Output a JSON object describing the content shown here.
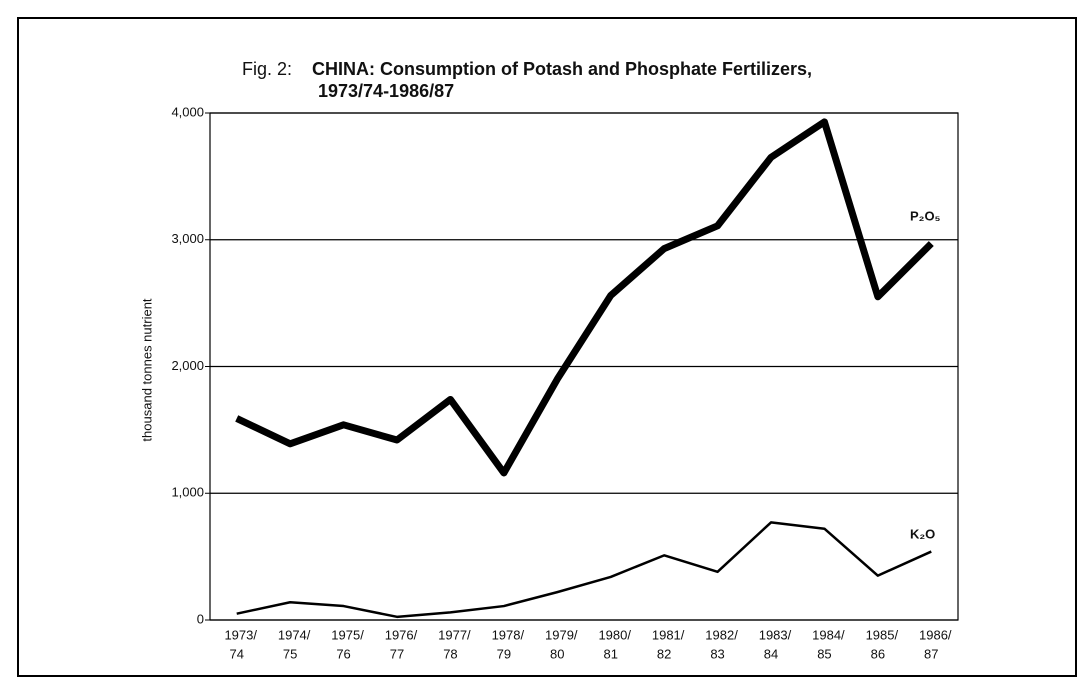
{
  "chart_data": {
    "type": "line",
    "figure_label": "Fig. 2:",
    "title": [
      "CHINA: Consumption of Potash and Phosphate Fertilizers,",
      "1973/74-1986/87"
    ],
    "y_label": "thousand tonnes nutrient",
    "categories": [
      [
        "1973/",
        "74"
      ],
      [
        "1974/",
        "75"
      ],
      [
        "1975/",
        "76"
      ],
      [
        "1976/",
        "77"
      ],
      [
        "1977/",
        "78"
      ],
      [
        "1978/",
        "79"
      ],
      [
        "1979/",
        "80"
      ],
      [
        "1980/",
        "81"
      ],
      [
        "1981/",
        "82"
      ],
      [
        "1982/",
        "83"
      ],
      [
        "1983/",
        "84"
      ],
      [
        "1984/",
        "85"
      ],
      [
        "1985/",
        "86"
      ],
      [
        "1986/",
        "87"
      ]
    ],
    "series": [
      {
        "name": "P₂O₅",
        "color": "#000000",
        "width": 7,
        "values": [
          1590,
          1390,
          1540,
          1420,
          1740,
          1160,
          1900,
          2560,
          2930,
          3110,
          3650,
          3930,
          2550,
          2970
        ]
      },
      {
        "name": "K₂O",
        "color": "#000000",
        "width": 2.5,
        "values": [
          50,
          140,
          110,
          25,
          60,
          110,
          220,
          340,
          510,
          380,
          770,
          720,
          350,
          540
        ]
      }
    ],
    "ylim": [
      0,
      4000
    ],
    "yticks": [
      0,
      {
        "value": 1000,
        "label": "1,000"
      },
      {
        "value": 2000,
        "label": "2,000"
      },
      {
        "value": 3000,
        "label": "3,000"
      },
      {
        "value": 4000,
        "label": "4,000"
      }
    ],
    "grid": true
  }
}
